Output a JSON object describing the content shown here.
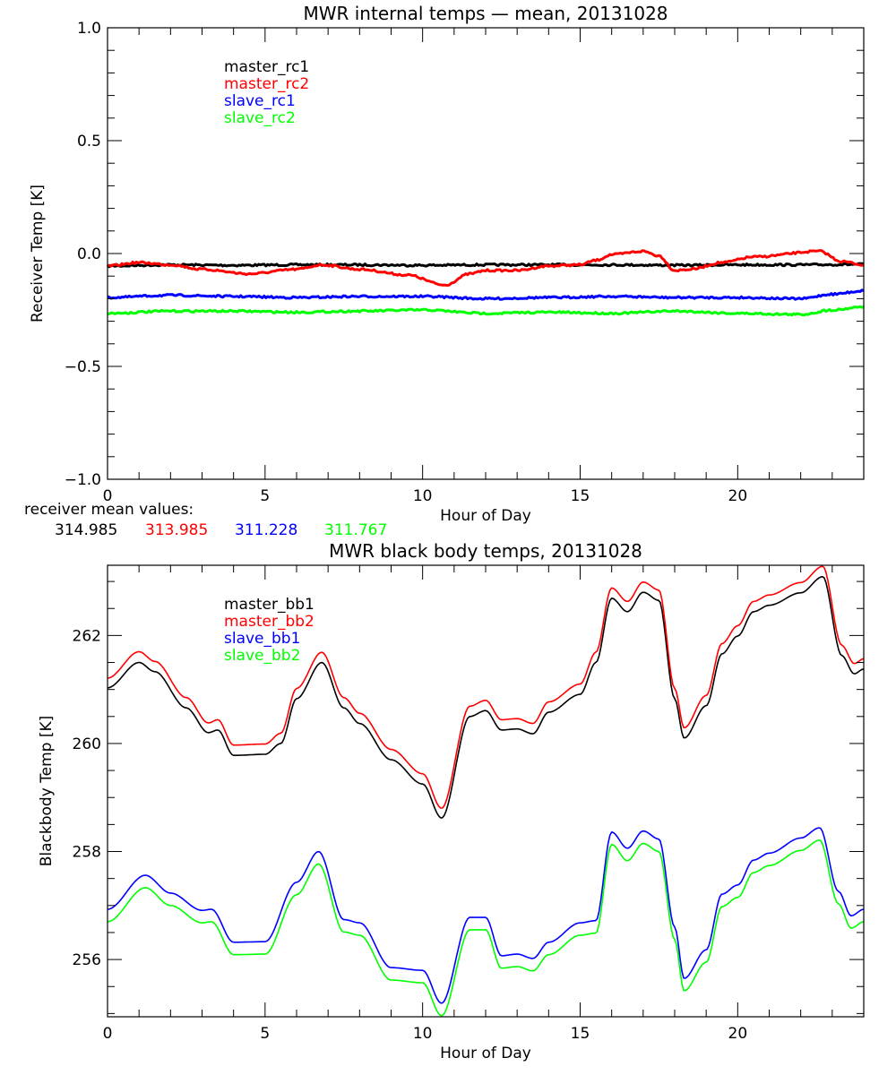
{
  "chart_data": [
    {
      "type": "line",
      "title": "MWR internal temps — mean, 20131028",
      "xlabel": "Hour of Day",
      "ylabel": "Receiver Temp [K]",
      "xlim": [
        0,
        24
      ],
      "ylim": [
        -1.0,
        1.0
      ],
      "x_major_ticks": [
        0,
        5,
        10,
        15,
        20
      ],
      "x_tick_labels": [
        "0",
        "5",
        "10",
        "15",
        "20"
      ],
      "x_minor_step": 1,
      "y_major_ticks": [
        -1.0,
        -0.5,
        0.0,
        0.5,
        1.0
      ],
      "y_tick_labels": [
        "−1.0",
        "−0.5",
        "0.0",
        "0.5",
        "1.0"
      ],
      "y_minor_step": 0.1,
      "grid": false,
      "legend_position": "top-left",
      "series": [
        {
          "name": "master_rc1",
          "color": "#000000",
          "x": [
            0,
            2,
            4,
            6,
            8,
            10,
            12,
            14,
            16,
            18,
            20,
            22,
            24
          ],
          "y": [
            -0.055,
            -0.05,
            -0.052,
            -0.05,
            -0.05,
            -0.052,
            -0.05,
            -0.05,
            -0.05,
            -0.052,
            -0.05,
            -0.05,
            -0.048
          ]
        },
        {
          "name": "master_rc2",
          "color": "#ff0000",
          "x": [
            0,
            1,
            2,
            3,
            4.5,
            6,
            6.8,
            8,
            9.5,
            10.7,
            11.5,
            12,
            13,
            14,
            15,
            15.5,
            16,
            17,
            17.5,
            18,
            18.5,
            19.5,
            20.5,
            22.6,
            23.3,
            24
          ],
          "y": [
            -0.055,
            -0.04,
            -0.05,
            -0.07,
            -0.09,
            -0.07,
            -0.05,
            -0.07,
            -0.095,
            -0.14,
            -0.09,
            -0.075,
            -0.075,
            -0.055,
            -0.05,
            -0.03,
            -0.005,
            0.01,
            -0.01,
            -0.075,
            -0.07,
            -0.04,
            -0.015,
            0.01,
            -0.035,
            -0.05
          ]
        },
        {
          "name": "slave_rc1",
          "color": "#0000ff",
          "x": [
            0,
            2,
            4,
            6,
            8,
            10,
            12,
            14,
            16,
            18,
            20,
            22,
            23,
            24
          ],
          "y": [
            -0.195,
            -0.185,
            -0.19,
            -0.195,
            -0.19,
            -0.19,
            -0.2,
            -0.195,
            -0.19,
            -0.195,
            -0.195,
            -0.2,
            -0.18,
            -0.165
          ]
        },
        {
          "name": "slave_rc2",
          "color": "#00ff00",
          "x": [
            0,
            2,
            4,
            6,
            8,
            10,
            12,
            14,
            16,
            18,
            20,
            22,
            23,
            24
          ],
          "y": [
            -0.265,
            -0.255,
            -0.255,
            -0.26,
            -0.255,
            -0.25,
            -0.265,
            -0.26,
            -0.265,
            -0.255,
            -0.265,
            -0.27,
            -0.25,
            -0.235
          ]
        }
      ],
      "annotations": {
        "mean_label": "receiver mean values:",
        "mean_values": [
          {
            "value": "314.985",
            "color": "#000000"
          },
          {
            "value": "313.985",
            "color": "#ff0000"
          },
          {
            "value": "311.228",
            "color": "#0000ff"
          },
          {
            "value": "311.767",
            "color": "#00ff00"
          }
        ]
      }
    },
    {
      "type": "line",
      "title": "MWR black body temps, 20131028",
      "xlabel": "Hour of Day",
      "ylabel": "Blackbody Temp [K]",
      "xlim": [
        0,
        24
      ],
      "ylim": [
        254.94,
        263.3
      ],
      "x_major_ticks": [
        0,
        5,
        10,
        15,
        20
      ],
      "x_tick_labels": [
        "0",
        "5",
        "10",
        "15",
        "20"
      ],
      "x_minor_step": 1,
      "y_major_ticks": [
        256,
        258,
        260,
        262
      ],
      "y_tick_labels": [
        "256",
        "258",
        "260",
        "262"
      ],
      "y_minor_step": 0.5,
      "grid": false,
      "legend_position": "top-left",
      "series": [
        {
          "name": "master_bb1",
          "color": "#000000",
          "x": [
            0,
            1,
            1.5,
            2.5,
            3.2,
            3.5,
            4,
            5,
            5.5,
            6,
            6.8,
            7.5,
            8,
            9,
            10,
            10.6,
            11.5,
            12,
            12.5,
            13,
            13.5,
            14,
            15,
            15.5,
            16,
            16.5,
            17,
            17.5,
            18,
            18.3,
            19,
            19.5,
            20,
            20.5,
            21,
            22,
            22.7,
            23.3,
            23.7,
            24
          ],
          "y": [
            261.03,
            261.5,
            261.33,
            260.66,
            260.2,
            260.25,
            259.78,
            259.8,
            260.0,
            260.83,
            261.5,
            260.66,
            260.37,
            259.7,
            259.25,
            258.62,
            260.5,
            260.61,
            260.25,
            260.27,
            260.18,
            260.58,
            260.91,
            261.5,
            262.69,
            262.44,
            262.8,
            262.65,
            260.83,
            260.1,
            260.7,
            261.66,
            261.99,
            262.44,
            262.56,
            262.79,
            263.09,
            261.63,
            261.29,
            261.38
          ]
        },
        {
          "name": "master_bb2",
          "color": "#ff0000",
          "x": [
            0,
            1,
            1.5,
            2.5,
            3.2,
            3.5,
            4,
            5,
            5.5,
            6,
            6.8,
            7.5,
            8,
            9,
            10,
            10.6,
            11.5,
            12,
            12.5,
            13,
            13.5,
            14,
            15,
            15.5,
            16,
            16.5,
            17,
            17.5,
            18,
            18.3,
            19,
            19.5,
            20,
            20.5,
            21,
            22,
            22.7,
            23.3,
            23.7,
            24
          ],
          "y": [
            261.21,
            261.7,
            261.52,
            260.85,
            260.38,
            260.44,
            259.97,
            259.99,
            260.19,
            261.02,
            261.69,
            260.85,
            260.56,
            259.89,
            259.44,
            258.8,
            260.69,
            260.8,
            260.44,
            260.46,
            260.37,
            260.77,
            261.1,
            261.69,
            262.88,
            262.63,
            262.99,
            262.84,
            261.02,
            260.29,
            260.89,
            261.85,
            262.18,
            262.63,
            262.75,
            262.98,
            263.28,
            261.82,
            261.48,
            261.57
          ]
        },
        {
          "name": "slave_bb1",
          "color": "#0000ff",
          "x": [
            0,
            1.2,
            2,
            3,
            3.3,
            4,
            5,
            6,
            6.7,
            7.5,
            8,
            9,
            10,
            10.6,
            11.5,
            12,
            12.5,
            13,
            13.5,
            14,
            15,
            15.5,
            16,
            16.5,
            17,
            17.5,
            18,
            18.3,
            19,
            19.5,
            20,
            20.5,
            21,
            22,
            22.6,
            23.2,
            23.6,
            24
          ],
          "y": [
            256.93,
            257.56,
            257.23,
            256.91,
            256.93,
            256.32,
            256.33,
            257.43,
            258.0,
            256.74,
            256.68,
            255.85,
            255.8,
            255.19,
            256.78,
            256.78,
            256.07,
            256.1,
            256.02,
            256.32,
            256.68,
            256.72,
            258.36,
            258.06,
            258.38,
            258.23,
            256.6,
            255.65,
            256.18,
            257.21,
            257.38,
            257.84,
            257.97,
            258.25,
            258.44,
            257.26,
            256.81,
            256.93
          ]
        },
        {
          "name": "slave_bb2",
          "color": "#00ff00",
          "x": [
            0,
            1.2,
            2,
            3,
            3.3,
            4,
            5,
            6,
            6.7,
            7.5,
            8,
            9,
            10,
            10.6,
            11.5,
            12,
            12.5,
            13,
            13.5,
            14,
            15,
            15.5,
            16,
            16.5,
            17,
            17.5,
            18,
            18.3,
            19,
            19.5,
            20,
            20.5,
            21,
            22,
            22.6,
            23.2,
            23.6,
            24
          ],
          "y": [
            256.7,
            257.33,
            257.0,
            256.68,
            256.7,
            256.09,
            256.1,
            257.2,
            257.77,
            256.51,
            256.45,
            255.62,
            255.57,
            254.96,
            256.55,
            256.55,
            255.84,
            255.87,
            255.79,
            256.09,
            256.45,
            256.49,
            258.13,
            257.83,
            258.15,
            258.0,
            256.37,
            255.42,
            255.95,
            256.98,
            257.15,
            257.61,
            257.74,
            258.02,
            258.21,
            257.03,
            256.58,
            256.7
          ]
        }
      ]
    }
  ]
}
